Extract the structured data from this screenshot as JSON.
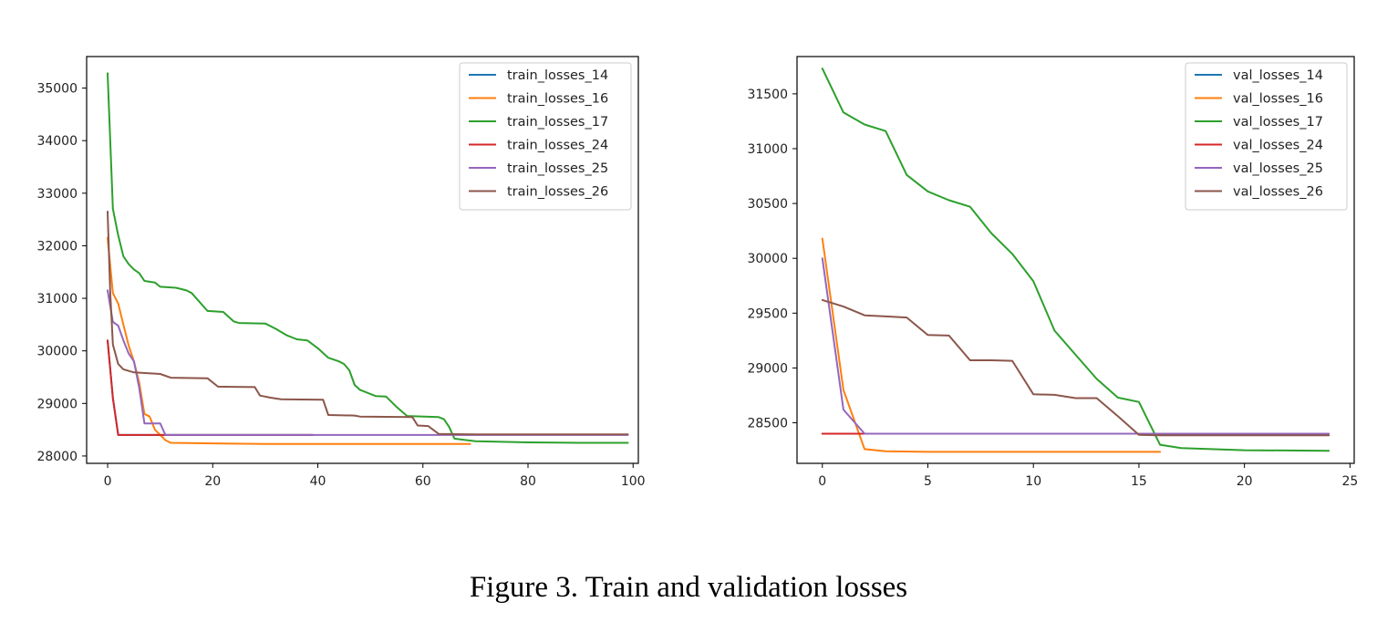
{
  "caption": "Figure 3. Train and validation losses",
  "chart_data": [
    {
      "type": "line",
      "xlim": [
        -4,
        101
      ],
      "ylim": [
        27860,
        35600
      ],
      "xticks": [
        0,
        20,
        40,
        60,
        80,
        100
      ],
      "yticks": [
        28000,
        29000,
        30000,
        31000,
        32000,
        33000,
        34000,
        35000
      ],
      "legend": "top-right",
      "grid": false,
      "series": [
        {
          "name": "train_losses_14",
          "color": "#1f77b4",
          "points": [
            [
              0,
              30200
            ],
            [
              1,
              29100
            ],
            [
              2,
              28400
            ],
            [
              10,
              28400
            ],
            [
              20,
              28400
            ],
            [
              30,
              28400
            ],
            [
              39,
              28400
            ]
          ]
        },
        {
          "name": "train_losses_16",
          "color": "#ff7f0e",
          "points": [
            [
              0,
              32150
            ],
            [
              1,
              31100
            ],
            [
              2,
              30900
            ],
            [
              3,
              30500
            ],
            [
              4,
              30100
            ],
            [
              5,
              29800
            ],
            [
              6,
              29400
            ],
            [
              7,
              28800
            ],
            [
              8,
              28750
            ],
            [
              9,
              28500
            ],
            [
              10,
              28400
            ],
            [
              11,
              28300
            ],
            [
              12,
              28250
            ],
            [
              20,
              28240
            ],
            [
              30,
              28230
            ],
            [
              40,
              28230
            ],
            [
              50,
              28230
            ],
            [
              60,
              28230
            ],
            [
              69,
              28230
            ]
          ]
        },
        {
          "name": "train_losses_17",
          "color": "#2ca02c",
          "points": [
            [
              0,
              35280
            ],
            [
              1,
              32700
            ],
            [
              2,
              32200
            ],
            [
              3,
              31800
            ],
            [
              4,
              31650
            ],
            [
              5,
              31550
            ],
            [
              6,
              31480
            ],
            [
              7,
              31330
            ],
            [
              9,
              31300
            ],
            [
              10,
              31220
            ],
            [
              13,
              31200
            ],
            [
              15,
              31150
            ],
            [
              16,
              31100
            ],
            [
              19,
              30760
            ],
            [
              22,
              30740
            ],
            [
              24,
              30560
            ],
            [
              25,
              30530
            ],
            [
              30,
              30520
            ],
            [
              32,
              30420
            ],
            [
              34,
              30300
            ],
            [
              36,
              30220
            ],
            [
              38,
              30200
            ],
            [
              40,
              30050
            ],
            [
              42,
              29870
            ],
            [
              44,
              29800
            ],
            [
              45,
              29750
            ],
            [
              46,
              29630
            ],
            [
              47,
              29350
            ],
            [
              48,
              29260
            ],
            [
              50,
              29180
            ],
            [
              51,
              29140
            ],
            [
              53,
              29130
            ],
            [
              55,
              28930
            ],
            [
              57,
              28760
            ],
            [
              63,
              28740
            ],
            [
              64,
              28700
            ],
            [
              65,
              28550
            ],
            [
              66,
              28330
            ],
            [
              70,
              28280
            ],
            [
              80,
              28260
            ],
            [
              90,
              28250
            ],
            [
              99,
              28250
            ]
          ]
        },
        {
          "name": "train_losses_24",
          "color": "#d62728",
          "points": [
            [
              0,
              30200
            ],
            [
              1,
              29100
            ],
            [
              2,
              28400
            ],
            [
              10,
              28400
            ],
            [
              20,
              28400
            ],
            [
              30,
              28400
            ],
            [
              39,
              28400
            ]
          ]
        },
        {
          "name": "train_losses_25",
          "color": "#9467bd",
          "points": [
            [
              0,
              31150
            ],
            [
              1,
              30550
            ],
            [
              2,
              30480
            ],
            [
              3,
              30200
            ],
            [
              4,
              29950
            ],
            [
              5,
              29800
            ],
            [
              6,
              29300
            ],
            [
              7,
              28620
            ],
            [
              10,
              28620
            ],
            [
              11,
              28400
            ],
            [
              20,
              28400
            ],
            [
              40,
              28400
            ],
            [
              60,
              28400
            ],
            [
              99,
              28400
            ]
          ]
        },
        {
          "name": "train_losses_26",
          "color": "#8c564b",
          "points": [
            [
              0,
              32650
            ],
            [
              0.5,
              31100
            ],
            [
              1,
              30120
            ],
            [
              2,
              29750
            ],
            [
              3,
              29650
            ],
            [
              5,
              29590
            ],
            [
              10,
              29560
            ],
            [
              12,
              29490
            ],
            [
              19,
              29480
            ],
            [
              21,
              29320
            ],
            [
              28,
              29310
            ],
            [
              29,
              29150
            ],
            [
              31,
              29110
            ],
            [
              33,
              29080
            ],
            [
              41,
              29070
            ],
            [
              42,
              28780
            ],
            [
              47,
              28770
            ],
            [
              48,
              28750
            ],
            [
              58,
              28740
            ],
            [
              59,
              28580
            ],
            [
              61,
              28570
            ],
            [
              63,
              28420
            ],
            [
              70,
              28410
            ],
            [
              80,
              28410
            ],
            [
              99,
              28410
            ]
          ]
        }
      ]
    },
    {
      "type": "line",
      "xlim": [
        -1.2,
        25.2
      ],
      "ylim": [
        28130,
        31840
      ],
      "xticks": [
        0,
        5,
        10,
        15,
        20,
        25
      ],
      "yticks": [
        28500,
        29000,
        29500,
        30000,
        30500,
        31000,
        31500
      ],
      "legend": "top-right",
      "grid": false,
      "series": [
        {
          "name": "val_losses_14",
          "color": "#1f77b4",
          "points": [
            [
              0,
              28400
            ],
            [
              1,
              28400
            ],
            [
              2,
              28400
            ],
            [
              5,
              28400
            ],
            [
              9,
              28400
            ]
          ]
        },
        {
          "name": "val_losses_16",
          "color": "#ff7f0e",
          "points": [
            [
              0,
              30180
            ],
            [
              1,
              28800
            ],
            [
              2,
              28260
            ],
            [
              3,
              28240
            ],
            [
              5,
              28235
            ],
            [
              10,
              28235
            ],
            [
              16,
              28235
            ]
          ]
        },
        {
          "name": "val_losses_17",
          "color": "#2ca02c",
          "points": [
            [
              0,
              31730
            ],
            [
              1,
              31330
            ],
            [
              2,
              31220
            ],
            [
              3,
              31160
            ],
            [
              4,
              30760
            ],
            [
              5,
              30610
            ],
            [
              6,
              30530
            ],
            [
              7,
              30470
            ],
            [
              8,
              30230
            ],
            [
              9,
              30040
            ],
            [
              10,
              29790
            ],
            [
              11,
              29340
            ],
            [
              12,
              29120
            ],
            [
              13,
              28900
            ],
            [
              14,
              28730
            ],
            [
              15,
              28690
            ],
            [
              16,
              28300
            ],
            [
              17,
              28270
            ],
            [
              20,
              28250
            ],
            [
              24,
              28245
            ]
          ]
        },
        {
          "name": "val_losses_24",
          "color": "#d62728",
          "points": [
            [
              0,
              28400
            ],
            [
              1,
              28400
            ],
            [
              2,
              28400
            ],
            [
              5,
              28400
            ],
            [
              9,
              28400
            ]
          ]
        },
        {
          "name": "val_losses_25",
          "color": "#9467bd",
          "points": [
            [
              0,
              30000
            ],
            [
              1,
              28620
            ],
            [
              2,
              28400
            ],
            [
              5,
              28400
            ],
            [
              10,
              28400
            ],
            [
              15,
              28400
            ],
            [
              24,
              28400
            ]
          ]
        },
        {
          "name": "val_losses_26",
          "color": "#8c564b",
          "points": [
            [
              0,
              29620
            ],
            [
              1,
              29560
            ],
            [
              2,
              29480
            ],
            [
              3,
              29470
            ],
            [
              4,
              29460
            ],
            [
              5,
              29300
            ],
            [
              6,
              29295
            ],
            [
              7,
              29070
            ],
            [
              8,
              29070
            ],
            [
              9,
              29065
            ],
            [
              10,
              28760
            ],
            [
              11,
              28755
            ],
            [
              12,
              28725
            ],
            [
              13,
              28725
            ],
            [
              14,
              28560
            ],
            [
              15,
              28390
            ],
            [
              16,
              28385
            ],
            [
              20,
              28385
            ],
            [
              24,
              28385
            ]
          ]
        }
      ]
    }
  ]
}
